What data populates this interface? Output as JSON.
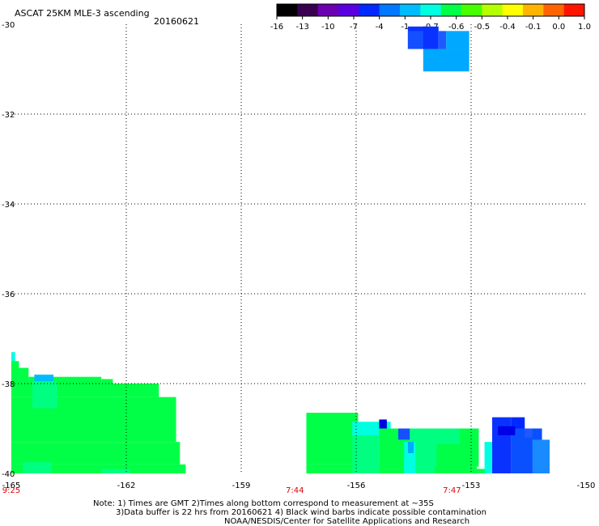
{
  "chart_data": {
    "type": "heatmap",
    "title": "ASCAT 25KM MLE-3 ascending",
    "date": "20160621",
    "x_axis": {
      "range": [
        -165,
        -150
      ],
      "ticks": [
        -165,
        -162,
        -159,
        -156,
        -153,
        -150
      ],
      "tick_labels": [
        "-165",
        "-162",
        "-159",
        "-156",
        "-153",
        "-150"
      ]
    },
    "y_axis": {
      "range": [
        -40,
        -30
      ],
      "ticks": [
        -30,
        -32,
        -34,
        -36,
        -38,
        -40
      ],
      "tick_labels": [
        "-30",
        "-32",
        "-34",
        "-36",
        "-38",
        "-40"
      ]
    },
    "grid": true,
    "time_labels": [
      {
        "text": "9:25",
        "x": -165
      },
      {
        "text": "7:44",
        "x": -157.6
      },
      {
        "text": "7:47",
        "x": -153.5
      }
    ],
    "colorbar": {
      "labels": [
        "-16",
        "-13",
        "-10",
        "-7",
        "-4",
        "-1",
        "-0.7",
        "-0.6",
        "-0.5",
        "-0.4",
        "-0.1",
        "0.0",
        "1.0"
      ],
      "colors": [
        "#000000",
        "#3a0050",
        "#6a00b0",
        "#5a00e0",
        "#0028ff",
        "#0078ff",
        "#00bcff",
        "#00ffe0",
        "#00ff46",
        "#46ff00",
        "#b4ff00",
        "#ffff00",
        "#ffb400",
        "#ff6400",
        "#ff1400"
      ]
    },
    "cells": [
      {
        "x": [
          -154.65,
          -153.85
        ],
        "y": [
          -30.55,
          -30.05
        ],
        "color": "#0a32ff"
      },
      {
        "x": [
          -153.85,
          -153.65
        ],
        "y": [
          -30.55,
          -30.15
        ],
        "color": "#1e5aff"
      },
      {
        "x": [
          -154.25,
          -153.05
        ],
        "y": [
          -31.05,
          -30.55
        ],
        "color": "#00a8ff"
      },
      {
        "x": [
          -154.65,
          -154.25
        ],
        "y": [
          -30.55,
          -30.15
        ],
        "color": "#1450ff"
      },
      {
        "x": [
          -153.65,
          -153.05
        ],
        "y": [
          -30.55,
          -30.15
        ],
        "color": "#00a8ff"
      },
      {
        "x": [
          -165.0,
          -164.9
        ],
        "y": [
          -38.0,
          -37.3
        ],
        "color": "#00ffe0"
      },
      {
        "x": [
          -165.0,
          -164.8
        ],
        "y": [
          -38.0,
          -37.5
        ],
        "color": "#00ff46"
      },
      {
        "x": [
          -164.8,
          -164.55
        ],
        "y": [
          -38.0,
          -37.65
        ],
        "color": "#00ff46"
      },
      {
        "x": [
          -164.55,
          -162.65
        ],
        "y": [
          -38.0,
          -37.85
        ],
        "color": "#00ff46"
      },
      {
        "x": [
          -164.4,
          -163.9
        ],
        "y": [
          -37.95,
          -37.8
        ],
        "color": "#00bcff"
      },
      {
        "x": [
          -162.65,
          -162.35
        ],
        "y": [
          -38.0,
          -37.9
        ],
        "color": "#00ff46"
      },
      {
        "x": [
          -165.0,
          -161.15
        ],
        "y": [
          -38.3,
          -38.0
        ],
        "color": "#00ff46"
      },
      {
        "x": [
          -165.0,
          -160.7
        ],
        "y": [
          -39.3,
          -38.3
        ],
        "color": "#00ff46"
      },
      {
        "x": [
          -165.0,
          -160.6
        ],
        "y": [
          -39.8,
          -39.3
        ],
        "color": "#00ff46"
      },
      {
        "x": [
          -165.0,
          -160.45
        ],
        "y": [
          -40.0,
          -39.8
        ],
        "color": "#00ff46"
      },
      {
        "x": [
          -164.45,
          -163.8
        ],
        "y": [
          -38.55,
          -37.95
        ],
        "color": "#00ff80"
      },
      {
        "x": [
          -164.7,
          -163.95
        ],
        "y": [
          -40.0,
          -39.75
        ],
        "color": "#00ff80"
      },
      {
        "x": [
          -162.65,
          -161.9
        ],
        "y": [
          -40.0,
          -39.9
        ],
        "color": "#00ff80"
      },
      {
        "x": [
          -157.3,
          -155.95
        ],
        "y": [
          -39.8,
          -38.65
        ],
        "color": "#00ff46"
      },
      {
        "x": [
          -157.3,
          -153.0
        ],
        "y": [
          -39.9,
          -39.8
        ],
        "color": "#00ff46"
      },
      {
        "x": [
          -157.3,
          -152.5
        ],
        "y": [
          -40.0,
          -39.9
        ],
        "color": "#00ff46"
      },
      {
        "x": [
          -156.1,
          -155.4
        ],
        "y": [
          -40.0,
          -39.0
        ],
        "color": "#00ff80"
      },
      {
        "x": [
          -156.1,
          -155.1
        ],
        "y": [
          -39.15,
          -38.85
        ],
        "color": "#00ffe0"
      },
      {
        "x": [
          -155.4,
          -155.2
        ],
        "y": [
          -39.0,
          -38.8
        ],
        "color": "#0000e0"
      },
      {
        "x": [
          -155.4,
          -152.8
        ],
        "y": [
          -39.85,
          -39.0
        ],
        "color": "#00ff46"
      },
      {
        "x": [
          -154.9,
          -154.6
        ],
        "y": [
          -39.25,
          -39.0
        ],
        "color": "#1450ff"
      },
      {
        "x": [
          -154.6,
          -154.4
        ],
        "y": [
          -39.3,
          -39.0
        ],
        "color": "#00ff80"
      },
      {
        "x": [
          -154.75,
          -154.45
        ],
        "y": [
          -40.0,
          -39.3
        ],
        "color": "#00ffe0"
      },
      {
        "x": [
          -154.45,
          -153.9
        ],
        "y": [
          -40.0,
          -39.0
        ],
        "color": "#00ff80"
      },
      {
        "x": [
          -154.65,
          -154.5
        ],
        "y": [
          -39.55,
          -39.3
        ],
        "color": "#00a8ff"
      },
      {
        "x": [
          -153.9,
          -153.3
        ],
        "y": [
          -39.35,
          -39.0
        ],
        "color": "#00ff80"
      },
      {
        "x": [
          -153.95,
          -152.85
        ],
        "y": [
          -40.0,
          -39.85
        ],
        "color": "#00ff46"
      },
      {
        "x": [
          -152.65,
          -152.45
        ],
        "y": [
          -40.0,
          -39.3
        ],
        "color": "#00ffe0"
      },
      {
        "x": [
          -152.45,
          -151.95
        ],
        "y": [
          -40.0,
          -38.75
        ],
        "color": "#0a32ff"
      },
      {
        "x": [
          -151.95,
          -151.6
        ],
        "y": [
          -39.0,
          -38.75
        ],
        "color": "#0028ff"
      },
      {
        "x": [
          -151.95,
          -151.15
        ],
        "y": [
          -40.0,
          -39.0
        ],
        "color": "#0a50ff"
      },
      {
        "x": [
          -151.6,
          -151.4
        ],
        "y": [
          -39.2,
          -39.0
        ],
        "color": "#1e5aff"
      },
      {
        "x": [
          -151.4,
          -150.95
        ],
        "y": [
          -40.0,
          -39.25
        ],
        "color": "#1a8aff"
      },
      {
        "x": [
          -152.3,
          -151.85
        ],
        "y": [
          -39.15,
          -38.95
        ],
        "color": "#0000e8"
      }
    ],
    "notes": [
      "Note: 1) Times are GMT 2)Times along bottom correspond to measurement at ~35S",
      "3)Data buffer is 22 hrs from 20160621 4) Black wind barbs indicate possible contamination",
      "NOAA/NESDIS/Center for Satellite Applications and Research"
    ]
  }
}
